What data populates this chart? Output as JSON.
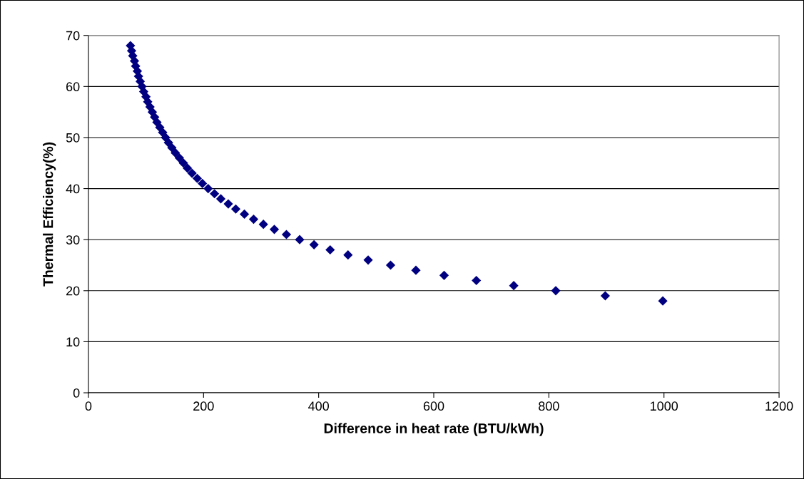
{
  "chart_data": {
    "type": "scatter",
    "xlabel": "Difference in heat rate (BTU/kWh)",
    "ylabel": "Thermal Efficiency(%)",
    "x": [
      998,
      898,
      812,
      739,
      674,
      618,
      569,
      525,
      486,
      451,
      420,
      392,
      367,
      344,
      323,
      304,
      287,
      271,
      256,
      243,
      230,
      219,
      208,
      198,
      189,
      180,
      172,
      165,
      158,
      151,
      145,
      139,
      134,
      129,
      124,
      119,
      115,
      111,
      107,
      103,
      100,
      96,
      93,
      90,
      87,
      85,
      82,
      80,
      77,
      75,
      73
    ],
    "series": [
      {
        "color": "#000080",
        "values": [
          18,
          19,
          20,
          21,
          22,
          23,
          24,
          25,
          26,
          27,
          28,
          29,
          30,
          31,
          32,
          33,
          34,
          35,
          36,
          37,
          38,
          39,
          40,
          41,
          42,
          43,
          44,
          45,
          46,
          47,
          48,
          49,
          50,
          51,
          52,
          53,
          54,
          55,
          56,
          57,
          58,
          59,
          60,
          61,
          62,
          63,
          64,
          65,
          66,
          67,
          68
        ]
      }
    ],
    "xlim": [
      0,
      1200
    ],
    "xticks": [
      0,
      200,
      400,
      600,
      800,
      1000,
      1200
    ],
    "ylim": [
      0,
      70
    ],
    "yticks": [
      0,
      10,
      20,
      30,
      40,
      50,
      60,
      70
    ],
    "grid": "y",
    "marker": "diamond"
  }
}
